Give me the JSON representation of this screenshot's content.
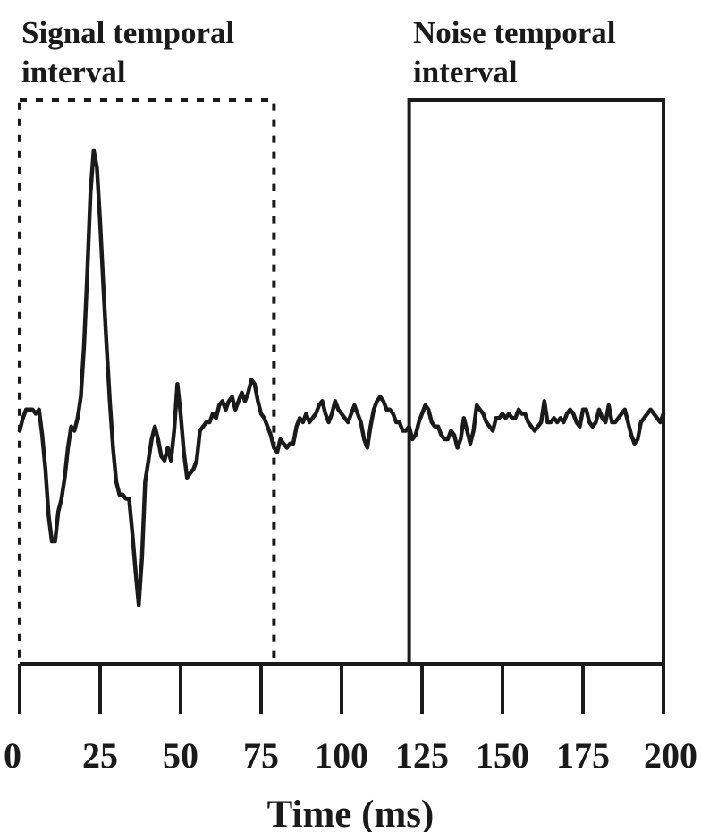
{
  "chart_data": {
    "type": "line",
    "title": "",
    "xlabel": "Time (ms)",
    "ylabel": "",
    "xlim": [
      0,
      200
    ],
    "x_ticks": [
      0,
      25,
      50,
      75,
      100,
      125,
      150,
      175,
      200
    ],
    "x_tick_labels": [
      "0",
      "25",
      "50",
      "75",
      "100",
      "125",
      "150",
      "175",
      "200"
    ],
    "y_axis_shown": false,
    "ylim": [
      -5,
      7
    ],
    "grid": false,
    "legend": "none",
    "line_color": "#1a1a1a",
    "annotations": [
      {
        "id": "signal",
        "text_lines": [
          "Signal temporal",
          "interval"
        ],
        "x_range": [
          0,
          79
        ],
        "style": "dotted"
      },
      {
        "id": "noise",
        "text_lines": [
          "Noise temporal",
          "interval"
        ],
        "x_range": [
          121,
          200
        ],
        "style": "solid"
      }
    ],
    "series": [
      {
        "x": [
          0,
          1,
          2,
          3,
          4,
          5,
          6,
          7,
          8,
          9,
          10,
          11,
          12,
          13,
          14,
          15,
          16,
          17,
          18,
          19,
          20,
          21,
          22,
          23,
          24,
          25,
          26,
          27,
          28,
          29,
          30,
          31,
          32,
          33,
          34,
          35,
          36,
          37,
          38,
          39,
          40,
          41,
          42,
          43,
          44,
          45,
          46,
          47,
          48,
          49,
          50,
          51,
          52,
          53,
          54,
          55,
          56,
          57,
          58,
          59,
          60,
          61,
          62,
          63,
          64,
          65,
          66,
          67,
          68,
          69,
          70,
          71,
          72,
          73,
          74,
          75,
          76,
          77,
          78,
          79,
          80,
          81,
          82,
          83,
          84,
          85,
          86,
          87,
          88,
          89,
          90,
          91,
          92,
          93,
          94,
          95,
          96,
          97,
          98,
          99,
          100,
          101,
          102,
          103,
          104,
          105,
          106,
          107,
          108,
          109,
          110,
          111,
          112,
          113,
          114,
          115,
          116,
          117,
          118,
          119,
          120,
          121,
          122,
          123,
          124,
          125,
          126,
          127,
          128,
          129,
          130,
          131,
          132,
          133,
          134,
          135,
          136,
          137,
          138,
          139,
          140,
          141,
          142,
          143,
          144,
          145,
          146,
          147,
          148,
          149,
          150,
          151,
          152,
          153,
          154,
          155,
          156,
          157,
          158,
          159,
          160,
          161,
          162,
          163,
          164,
          165,
          166,
          167,
          168,
          169,
          170,
          171,
          172,
          173,
          174,
          175,
          176,
          177,
          178,
          179,
          180,
          181,
          182,
          183,
          184,
          185,
          186,
          187,
          188,
          189,
          190,
          191,
          192,
          193,
          194,
          195,
          196,
          197,
          198,
          199,
          200
        ],
        "y": [
          -0.2,
          0.1,
          0.3,
          0.3,
          0.3,
          0.2,
          0.3,
          -0.3,
          -1.1,
          -2.2,
          -2.8,
          -2.8,
          -2.1,
          -1.8,
          -1.3,
          -0.6,
          -0.1,
          -0.2,
          0.1,
          0.6,
          1.8,
          3.5,
          5.4,
          6.4,
          6.0,
          4.7,
          3.2,
          1.8,
          0.5,
          -0.6,
          -1.4,
          -1.7,
          -1.7,
          -1.8,
          -1.8,
          -2.6,
          -3.5,
          -4.3,
          -3.2,
          -1.4,
          -0.9,
          -0.4,
          -0.1,
          -0.4,
          -0.8,
          -0.9,
          -0.6,
          -0.9,
          -0.2,
          0.9,
          0.2,
          -0.7,
          -1.3,
          -1.2,
          -1.1,
          -0.9,
          -0.2,
          -0.1,
          0.0,
          0.0,
          0.2,
          0.1,
          0.4,
          0.5,
          0.3,
          0.5,
          0.6,
          0.3,
          0.5,
          0.7,
          0.5,
          0.7,
          1.0,
          0.9,
          0.5,
          0.2,
          0.1,
          -0.1,
          -0.3,
          -0.6,
          -0.7,
          -0.4,
          -0.5,
          -0.6,
          -0.5,
          -0.5,
          -0.1,
          0.1,
          0.0,
          0.2,
          0.0,
          0.1,
          0.2,
          0.4,
          0.5,
          0.2,
          0.0,
          0.2,
          0.5,
          0.3,
          0.2,
          0.1,
          0.0,
          0.2,
          0.4,
          0.2,
          0.0,
          -0.4,
          -0.6,
          -0.1,
          0.3,
          0.5,
          0.6,
          0.5,
          0.3,
          0.3,
          0.2,
          0.0,
          0.0,
          -0.2,
          -0.2,
          -0.1,
          -0.4,
          -0.3,
          0.0,
          0.2,
          0.4,
          0.3,
          0.0,
          -0.1,
          -0.1,
          -0.3,
          -0.4,
          -0.4,
          -0.2,
          -0.3,
          -0.6,
          -0.4,
          0.1,
          -0.2,
          -0.5,
          -0.2,
          0.4,
          0.3,
          0.2,
          0.0,
          -0.1,
          -0.2,
          0.1,
          0.1,
          0.2,
          0.1,
          0.2,
          0.1,
          0.1,
          0.3,
          0.2,
          0.2,
          0.0,
          -0.1,
          -0.2,
          -0.1,
          0.0,
          0.5,
          0.0,
          0.0,
          0.1,
          0.0,
          0.1,
          0.0,
          0.2,
          0.3,
          0.2,
          0.0,
          -0.1,
          0.3,
          0.3,
          0.0,
          -0.1,
          0.0,
          0.3,
          0.1,
          0.0,
          0.4,
          0.0,
          0.0,
          0.1,
          0.2,
          0.3,
          0.0,
          -0.3,
          -0.5,
          -0.4,
          0.0,
          0.1,
          0.2,
          0.3,
          0.2,
          0.1,
          0.0,
          0.2
        ]
      }
    ]
  }
}
